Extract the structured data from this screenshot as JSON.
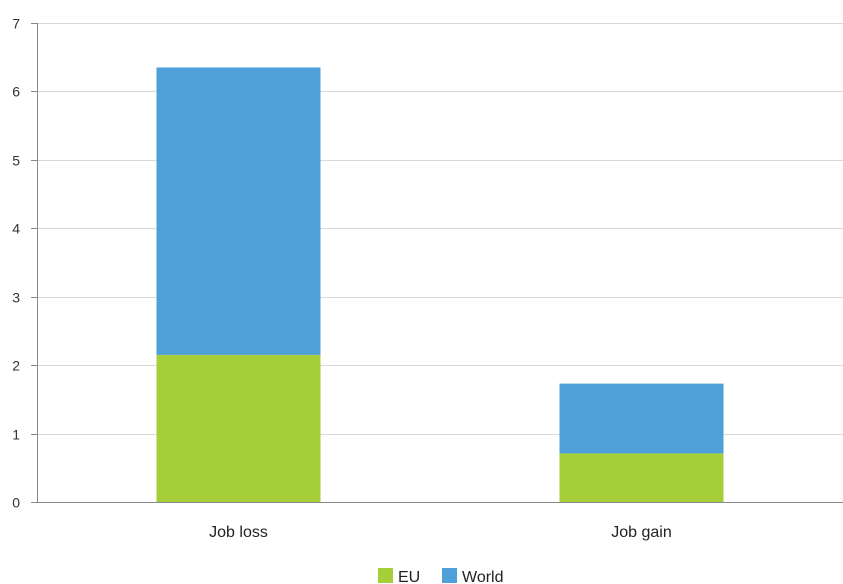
{
  "chart_data": {
    "type": "bar",
    "stacked": true,
    "title": "",
    "xlabel": "",
    "ylabel": "",
    "categories": [
      "Job loss",
      "Job gain"
    ],
    "series": [
      {
        "name": "EU",
        "values": [
          2.15,
          0.71
        ],
        "color": "#a6ce39"
      },
      {
        "name": "World",
        "values": [
          4.2,
          1.02
        ],
        "color": "#4f9fd9"
      }
    ],
    "ylim": [
      0,
      7
    ],
    "yticks": [
      "0",
      "1",
      "2",
      "3",
      "4",
      "5",
      "6",
      "7"
    ],
    "grid": true,
    "legend_position": "bottom-center"
  }
}
